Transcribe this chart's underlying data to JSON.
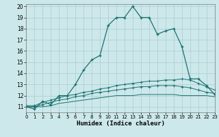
{
  "title": "",
  "xlabel": "Humidex (Indice chaleur)",
  "background_color": "#cce8ea",
  "grid_color": "#aacccc",
  "line_color": "#1a7070",
  "xlim": [
    0,
    23
  ],
  "ylim": [
    10.5,
    20.2
  ],
  "xticks": [
    0,
    1,
    2,
    3,
    4,
    5,
    6,
    7,
    8,
    9,
    10,
    11,
    12,
    13,
    14,
    15,
    16,
    17,
    18,
    19,
    20,
    21,
    22,
    23
  ],
  "yticks": [
    11,
    12,
    13,
    14,
    15,
    16,
    17,
    18,
    19,
    20
  ],
  "s1_x": [
    0,
    1,
    2,
    3,
    4,
    5,
    6,
    7,
    8,
    9,
    10,
    11,
    12,
    13,
    14,
    15,
    16,
    17,
    18,
    19,
    20,
    21,
    22,
    23
  ],
  "s1_y": [
    11.0,
    10.8,
    11.5,
    11.2,
    12.0,
    12.0,
    13.0,
    14.3,
    15.2,
    15.6,
    18.3,
    19.0,
    19.0,
    20.0,
    19.0,
    19.0,
    17.5,
    17.8,
    18.0,
    16.4,
    13.5,
    13.5,
    12.9,
    12.1
  ],
  "s2_x": [
    0,
    1,
    2,
    3,
    4,
    5,
    6,
    7,
    8,
    9,
    10,
    11,
    12,
    13,
    14,
    15,
    16,
    17,
    18,
    19,
    20,
    21,
    22,
    23
  ],
  "s2_y": [
    11.1,
    11.1,
    11.4,
    11.6,
    11.8,
    12.0,
    12.1,
    12.3,
    12.4,
    12.6,
    12.7,
    12.9,
    13.0,
    13.1,
    13.2,
    13.3,
    13.3,
    13.4,
    13.4,
    13.5,
    13.4,
    13.1,
    12.8,
    12.5
  ],
  "s3_x": [
    0,
    1,
    2,
    3,
    4,
    5,
    6,
    7,
    8,
    9,
    10,
    11,
    12,
    13,
    14,
    15,
    16,
    17,
    18,
    19,
    20,
    21,
    22,
    23
  ],
  "s3_y": [
    11.0,
    11.0,
    11.0,
    11.1,
    11.3,
    11.4,
    11.5,
    11.6,
    11.7,
    11.8,
    11.9,
    12.0,
    12.0,
    12.0,
    12.1,
    12.1,
    12.1,
    12.1,
    12.1,
    12.0,
    12.0,
    12.0,
    12.0,
    11.9
  ],
  "s4_x": [
    0,
    1,
    2,
    3,
    4,
    5,
    6,
    7,
    8,
    9,
    10,
    11,
    12,
    13,
    14,
    15,
    16,
    17,
    18,
    19,
    20,
    21,
    22,
    23
  ],
  "s4_y": [
    11.0,
    11.0,
    11.2,
    11.4,
    11.6,
    11.7,
    11.9,
    12.0,
    12.2,
    12.3,
    12.4,
    12.5,
    12.6,
    12.7,
    12.8,
    12.8,
    12.9,
    12.9,
    12.9,
    12.8,
    12.7,
    12.5,
    12.3,
    12.2
  ]
}
